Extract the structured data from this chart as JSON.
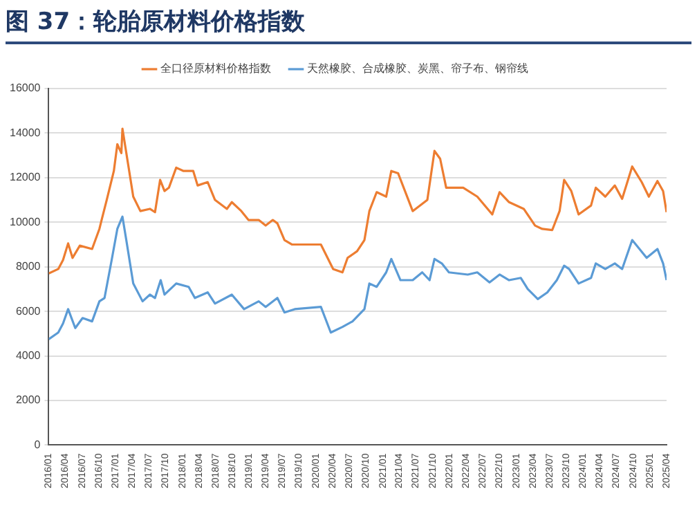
{
  "chart_data": {
    "type": "line",
    "title": "图 37：轮胎原材料价格指数",
    "xlim": [
      "2016-01",
      "2025-04"
    ],
    "xticks": [
      {
        "value": "2016-01",
        "label": "2016/01"
      },
      {
        "value": "2016-04",
        "label": "2016/04"
      },
      {
        "value": "2016-07",
        "label": "2016/07"
      },
      {
        "value": "2016-10",
        "label": "2016/10"
      },
      {
        "value": "2017-01",
        "label": "2017/01"
      },
      {
        "value": "2017-04",
        "label": "2017/04"
      },
      {
        "value": "2017-07",
        "label": "2017/07"
      },
      {
        "value": "2017-10",
        "label": "2017/10"
      },
      {
        "value": "2018-01",
        "label": "2018/01"
      },
      {
        "value": "2018-04",
        "label": "2018/04"
      },
      {
        "value": "2018-07",
        "label": "2018/07"
      },
      {
        "value": "2018-10",
        "label": "2018/10"
      },
      {
        "value": "2019-01",
        "label": "2019/01"
      },
      {
        "value": "2019-04",
        "label": "2019/04"
      },
      {
        "value": "2019-07",
        "label": "2019/07"
      },
      {
        "value": "2019-10",
        "label": "2019/10"
      },
      {
        "value": "2020-01",
        "label": "2020/01"
      },
      {
        "value": "2020-04",
        "label": "2020/04"
      },
      {
        "value": "2020-07",
        "label": "2020/07"
      },
      {
        "value": "2020-10",
        "label": "2020/10"
      },
      {
        "value": "2021-01",
        "label": "2021/01"
      },
      {
        "value": "2021-04",
        "label": "2021/04"
      },
      {
        "value": "2021-07",
        "label": "2021/07"
      },
      {
        "value": "2021-10",
        "label": "2021/10"
      },
      {
        "value": "2022-01",
        "label": "2022/01"
      },
      {
        "value": "2022-04",
        "label": "2022/04"
      },
      {
        "value": "2022-07",
        "label": "2022/07"
      },
      {
        "value": "2022-10",
        "label": "2022/10"
      },
      {
        "value": "2023-01",
        "label": "2023/01"
      },
      {
        "value": "2023-04",
        "label": "2023/04"
      },
      {
        "value": "2023-07",
        "label": "2023/07"
      },
      {
        "value": "2023-10",
        "label": "2023/10"
      },
      {
        "value": "2024-01",
        "label": "2024/01"
      },
      {
        "value": "2024-04",
        "label": "2024/04"
      },
      {
        "value": "2024-07",
        "label": "2024/07"
      },
      {
        "value": "2024-10",
        "label": "2024/10"
      },
      {
        "value": "2025-01",
        "label": "2025/01"
      },
      {
        "value": "2025-04",
        "label": "2025/04"
      }
    ],
    "ylim": [
      0,
      16000
    ],
    "yticks": [
      0,
      2000,
      4000,
      6000,
      8000,
      10000,
      12000,
      14000,
      16000
    ],
    "grid": "y",
    "legend": "top",
    "marker": "none",
    "line_style": "solid",
    "series": [
      {
        "name": "全口径原材料价格指数",
        "color": "#ed7d31",
        "x": [
          "2016-01-01",
          "2016-02-22",
          "2016-03-19",
          "2016-04-16",
          "2016-05-10",
          "2016-06-19",
          "2016-08-25",
          "2016-10-04",
          "2016-10-16",
          "2016-11-13",
          "2016-12-22",
          "2017-01-10",
          "2017-02-01",
          "2017-02-07",
          "2017-03-10",
          "2017-04-07",
          "2017-05-16",
          "2017-07-07",
          "2017-08-04",
          "2017-09-01",
          "2017-09-25",
          "2017-10-19",
          "2017-11-28",
          "2018-01-07",
          "2018-03-01",
          "2018-03-25",
          "2018-05-19",
          "2018-06-28",
          "2018-09-01",
          "2018-09-28",
          "2018-11-19",
          "2018-12-28",
          "2019-02-22",
          "2019-04-01",
          "2019-05-10",
          "2019-06-04",
          "2019-07-13",
          "2019-08-22",
          "2020-01-28",
          "2020-04-04",
          "2020-05-25",
          "2020-06-22",
          "2020-08-13",
          "2020-09-22",
          "2020-10-19",
          "2020-11-28",
          "2021-01-19",
          "2021-02-16",
          "2021-03-25",
          "2021-06-13",
          "2021-09-01",
          "2021-10-10",
          "2021-11-10",
          "2021-12-13",
          "2022-03-16",
          "2022-06-01",
          "2022-08-22",
          "2022-10-01",
          "2022-11-22",
          "2023-02-10",
          "2023-04-13",
          "2023-05-22",
          "2023-07-16",
          "2023-08-25",
          "2023-09-19",
          "2023-10-28",
          "2023-12-07",
          "2024-02-13",
          "2024-03-10",
          "2024-05-01",
          "2024-06-22",
          "2024-08-01",
          "2024-09-25",
          "2024-11-16",
          "2024-12-25",
          "2025-02-10",
          "2025-03-13",
          "2025-04-01"
        ],
        "values": [
          7700,
          7900,
          8300,
          9050,
          8400,
          8950,
          8800,
          9700,
          10100,
          11000,
          12300,
          13500,
          13100,
          14200,
          12600,
          11150,
          10500,
          10600,
          10450,
          11900,
          11400,
          11550,
          12450,
          12300,
          12300,
          11650,
          11800,
          11000,
          10600,
          10900,
          10500,
          10100,
          10100,
          9850,
          10100,
          9950,
          9200,
          9000,
          9000,
          7900,
          7750,
          8400,
          8700,
          9200,
          10500,
          11350,
          11150,
          12300,
          12200,
          10500,
          11000,
          13200,
          12850,
          11550,
          11550,
          11150,
          10350,
          11350,
          10900,
          10600,
          9850,
          9700,
          9650,
          10500,
          11900,
          11400,
          10350,
          10750,
          11550,
          11150,
          11650,
          11050,
          12500,
          11800,
          11150,
          11850,
          11400,
          10450
        ]
      },
      {
        "name": "天然橡胶、合成橡胶、炭黑、帘子布、钢帘线",
        "color": "#5b9bd5",
        "x": [
          "2016-01-01",
          "2016-02-22",
          "2016-03-19",
          "2016-04-16",
          "2016-05-25",
          "2016-07-04",
          "2016-08-25",
          "2016-10-04",
          "2016-11-01",
          "2016-12-10",
          "2017-01-10",
          "2017-02-07",
          "2017-02-28",
          "2017-04-07",
          "2017-05-28",
          "2017-07-07",
          "2017-08-04",
          "2017-09-04",
          "2017-09-25",
          "2017-11-28",
          "2018-02-04",
          "2018-03-10",
          "2018-05-19",
          "2018-06-28",
          "2018-09-28",
          "2018-12-04",
          "2019-02-22",
          "2019-04-01",
          "2019-06-04",
          "2019-07-13",
          "2019-09-07",
          "2020-01-28",
          "2020-03-22",
          "2020-05-25",
          "2020-07-19",
          "2020-09-22",
          "2020-10-19",
          "2020-11-28",
          "2021-01-19",
          "2021-02-16",
          "2021-04-07",
          "2021-06-13",
          "2021-08-04",
          "2021-09-13",
          "2021-10-10",
          "2021-11-19",
          "2021-12-28",
          "2022-04-10",
          "2022-06-01",
          "2022-08-07",
          "2022-10-01",
          "2022-11-22",
          "2023-01-25",
          "2023-03-04",
          "2023-04-28",
          "2023-06-19",
          "2023-08-10",
          "2023-09-19",
          "2023-10-16",
          "2023-12-07",
          "2024-02-13",
          "2024-03-10",
          "2024-05-01",
          "2024-06-22",
          "2024-08-01",
          "2024-09-25",
          "2024-11-04",
          "2024-12-13",
          "2025-02-10",
          "2025-03-13",
          "2025-04-01"
        ],
        "values": [
          4750,
          5050,
          5450,
          6100,
          5250,
          5700,
          5550,
          6450,
          6600,
          8300,
          9700,
          10250,
          9200,
          7250,
          6450,
          6750,
          6600,
          7400,
          6750,
          7250,
          7100,
          6600,
          6850,
          6350,
          6750,
          6100,
          6450,
          6200,
          6600,
          5950,
          6100,
          6200,
          5050,
          5300,
          5550,
          6100,
          7250,
          7100,
          7750,
          8350,
          7400,
          7400,
          7750,
          7400,
          8350,
          8150,
          7750,
          7650,
          7750,
          7300,
          7650,
          7400,
          7500,
          7000,
          6550,
          6850,
          7400,
          8050,
          7900,
          7250,
          7500,
          8150,
          7900,
          8150,
          7900,
          9200,
          8800,
          8400,
          8800,
          8150,
          7400
        ]
      }
    ]
  }
}
